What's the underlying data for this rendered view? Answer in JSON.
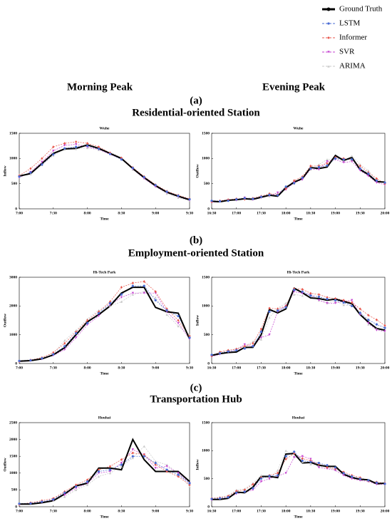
{
  "column_titles": [
    "Morning Peak",
    "Evening Peak"
  ],
  "panels": [
    {
      "label": "(a)",
      "title": "Residential-oriented Station"
    },
    {
      "label": "(b)",
      "title": "Employment-oriented Station"
    },
    {
      "label": "(c)",
      "title": "Transportation Hub"
    }
  ],
  "chart_data": [
    {
      "type": "line",
      "title": "Wuhe",
      "xlabel": "Time",
      "ylabel": "Inflow",
      "categories": [
        "7:00",
        null,
        null,
        "7:30",
        null,
        null,
        "8:00",
        null,
        null,
        "8:30",
        null,
        null,
        "9:00",
        null,
        null,
        "9:30"
      ],
      "ylim": [
        0,
        1500
      ],
      "yticks": [
        0,
        500,
        1000,
        1500
      ],
      "series": [
        {
          "name": "Ground Truth",
          "color": "#000000",
          "values": [
            650,
            700,
            900,
            1100,
            1190,
            1200,
            1270,
            1200,
            1100,
            1000,
            800,
            620,
            460,
            330,
            250,
            180
          ]
        },
        {
          "name": "LSTM",
          "color": "#4a6cd4",
          "values": [
            640,
            720,
            880,
            1080,
            1200,
            1230,
            1250,
            1190,
            1090,
            980,
            810,
            630,
            470,
            340,
            260,
            190
          ]
        },
        {
          "name": "Informer",
          "color": "#e8574d",
          "values": [
            660,
            800,
            1000,
            1230,
            1300,
            1330,
            1300,
            1230,
            1110,
            1010,
            820,
            640,
            480,
            350,
            270,
            200
          ]
        },
        {
          "name": "SVR",
          "color": "#c43fd0",
          "values": [
            620,
            730,
            930,
            1150,
            1260,
            1280,
            1230,
            1180,
            1080,
            990,
            790,
            600,
            440,
            320,
            240,
            170
          ]
        },
        {
          "name": "ARIMA",
          "color": "#c8c8c8",
          "values": [
            680,
            690,
            870,
            1060,
            1180,
            1190,
            1210,
            1170,
            1120,
            1020,
            780,
            610,
            450,
            300,
            220,
            160
          ]
        }
      ]
    },
    {
      "type": "line",
      "title": "Wuhe",
      "xlabel": "Time",
      "ylabel": "Outflow",
      "categories": [
        "16:30",
        null,
        null,
        "17:00",
        null,
        null,
        "17:30",
        null,
        null,
        "18:00",
        null,
        null,
        "18:30",
        null,
        null,
        "19:00",
        null,
        null,
        "19:30",
        null,
        null,
        "20:00"
      ],
      "ylim": [
        0,
        1500
      ],
      "yticks": [
        0,
        500,
        1000,
        1500
      ],
      "series": [
        {
          "name": "Ground Truth",
          "color": "#000000",
          "values": [
            150,
            140,
            170,
            180,
            200,
            190,
            230,
            270,
            250,
            420,
            530,
            600,
            820,
            800,
            830,
            1060,
            960,
            1020,
            780,
            680,
            540,
            530
          ]
        },
        {
          "name": "LSTM",
          "color": "#4a6cd4",
          "values": [
            160,
            150,
            160,
            190,
            210,
            200,
            240,
            280,
            270,
            440,
            510,
            620,
            800,
            830,
            860,
            1000,
            980,
            980,
            800,
            700,
            560,
            520
          ]
        },
        {
          "name": "Informer",
          "color": "#e8574d",
          "values": [
            140,
            160,
            180,
            200,
            190,
            210,
            250,
            300,
            280,
            400,
            560,
            640,
            850,
            850,
            900,
            1020,
            1000,
            970,
            850,
            720,
            600,
            500
          ]
        },
        {
          "name": "SVR",
          "color": "#c43fd0",
          "values": [
            130,
            140,
            170,
            170,
            220,
            180,
            220,
            260,
            320,
            380,
            520,
            580,
            790,
            780,
            940,
            980,
            920,
            940,
            760,
            650,
            520,
            480
          ]
        },
        {
          "name": "ARIMA",
          "color": "#c8c8c8",
          "values": [
            170,
            150,
            190,
            180,
            230,
            210,
            260,
            250,
            300,
            450,
            500,
            610,
            780,
            880,
            980,
            1000,
            950,
            1050,
            880,
            760,
            580,
            510
          ]
        }
      ]
    },
    {
      "type": "line",
      "title": "Hi-Tech Park",
      "xlabel": "Time",
      "ylabel": "Outflow",
      "categories": [
        "7:00",
        null,
        null,
        "7:30",
        null,
        null,
        "8:00",
        null,
        null,
        "8:30",
        null,
        null,
        "9:00",
        null,
        null,
        "9:30"
      ],
      "ylim": [
        0,
        3000
      ],
      "yticks": [
        0,
        1000,
        2000,
        3000
      ],
      "series": [
        {
          "name": "Ground Truth",
          "color": "#000000",
          "values": [
            80,
            100,
            160,
            300,
            550,
            1000,
            1450,
            1700,
            2000,
            2450,
            2650,
            2650,
            1950,
            1800,
            1750,
            850
          ]
        },
        {
          "name": "LSTM",
          "color": "#4a6cd4",
          "values": [
            90,
            110,
            180,
            320,
            600,
            1050,
            1400,
            1750,
            2100,
            2400,
            2700,
            2700,
            2200,
            1850,
            1650,
            900
          ]
        },
        {
          "name": "Informer",
          "color": "#e8574d",
          "values": [
            70,
            120,
            200,
            380,
            700,
            1100,
            1500,
            1800,
            2150,
            2650,
            2800,
            2850,
            2500,
            1900,
            1500,
            950
          ]
        },
        {
          "name": "SVR",
          "color": "#c43fd0",
          "values": [
            60,
            90,
            150,
            280,
            480,
            900,
            1350,
            1650,
            2050,
            2300,
            2450,
            2450,
            2450,
            1800,
            1400,
            850
          ]
        },
        {
          "name": "ARIMA",
          "color": "#c8c8c8",
          "values": [
            100,
            130,
            220,
            350,
            800,
            1150,
            1550,
            1850,
            2000,
            2150,
            2400,
            2500,
            2300,
            1700,
            1300,
            1000
          ]
        }
      ]
    },
    {
      "type": "line",
      "title": "Hi-Tech Park",
      "xlabel": "Time",
      "ylabel": "Inflow",
      "categories": [
        "16:30",
        null,
        null,
        "17:00",
        null,
        null,
        "17:30",
        null,
        null,
        "18:00",
        null,
        null,
        "18:30",
        null,
        null,
        "19:00",
        null,
        null,
        "19:30",
        null,
        null,
        "20:00"
      ],
      "ylim": [
        0,
        1500
      ],
      "yticks": [
        0,
        500,
        1000,
        1500
      ],
      "series": [
        {
          "name": "Ground Truth",
          "color": "#000000",
          "values": [
            140,
            170,
            190,
            200,
            280,
            280,
            500,
            940,
            880,
            950,
            1310,
            1230,
            1140,
            1130,
            1100,
            1120,
            1080,
            1040,
            850,
            720,
            610,
            580
          ]
        },
        {
          "name": "LSTM",
          "color": "#4a6cd4",
          "values": [
            150,
            180,
            210,
            230,
            260,
            300,
            550,
            900,
            920,
            980,
            1280,
            1250,
            1180,
            1160,
            1120,
            1100,
            1060,
            1000,
            880,
            760,
            680,
            620
          ]
        },
        {
          "name": "Informer",
          "color": "#e8574d",
          "values": [
            130,
            200,
            230,
            250,
            300,
            350,
            600,
            960,
            950,
            1000,
            1300,
            1290,
            1220,
            1200,
            1150,
            1130,
            1100,
            1060,
            950,
            840,
            760,
            660
          ]
        },
        {
          "name": "SVR",
          "color": "#c43fd0",
          "values": [
            120,
            160,
            200,
            240,
            330,
            300,
            450,
            500,
            900,
            1000,
            1250,
            1220,
            1200,
            1100,
            1050,
            1050,
            1080,
            1100,
            850,
            700,
            580,
            560
          ]
        },
        {
          "name": "ARIMA",
          "color": "#c8c8c8",
          "values": [
            160,
            190,
            220,
            260,
            300,
            380,
            420,
            800,
            960,
            1050,
            1200,
            1180,
            1180,
            1100,
            1050,
            1090,
            1020,
            1000,
            900,
            680,
            600,
            550
          ]
        }
      ]
    },
    {
      "type": "line",
      "title": "Houhai",
      "xlabel": "Time",
      "ylabel": "Outflow",
      "categories": [
        "7:00",
        null,
        null,
        "7:30",
        null,
        null,
        "8:00",
        null,
        null,
        "8:30",
        null,
        null,
        "9:00",
        null,
        null,
        "9:30"
      ],
      "ylim": [
        0,
        2500
      ],
      "yticks": [
        0,
        500,
        1000,
        1500,
        2000,
        2500
      ],
      "series": [
        {
          "name": "Ground Truth",
          "color": "#000000",
          "values": [
            80,
            80,
            120,
            180,
            380,
            620,
            700,
            1150,
            1150,
            1100,
            2000,
            1400,
            1050,
            1050,
            1050,
            750
          ]
        },
        {
          "name": "LSTM",
          "color": "#4a6cd4",
          "values": [
            90,
            100,
            150,
            220,
            420,
            600,
            750,
            1050,
            1100,
            1250,
            1500,
            1500,
            1300,
            1100,
            950,
            700
          ]
        },
        {
          "name": "Informer",
          "color": "#e8574d",
          "values": [
            70,
            120,
            180,
            250,
            450,
            650,
            800,
            1100,
            1200,
            1400,
            1600,
            1550,
            1250,
            1050,
            900,
            650
          ]
        },
        {
          "name": "SVR",
          "color": "#c43fd0",
          "values": [
            60,
            90,
            130,
            200,
            350,
            550,
            700,
            1000,
            1050,
            1300,
            1700,
            1550,
            1150,
            1200,
            1000,
            700
          ]
        },
        {
          "name": "ARIMA",
          "color": "#c8c8c8",
          "values": [
            100,
            110,
            160,
            180,
            300,
            500,
            650,
            900,
            1000,
            1200,
            1450,
            1800,
            1350,
            1250,
            1000,
            600
          ]
        }
      ]
    },
    {
      "type": "line",
      "title": "Houhai",
      "xlabel": "Time",
      "ylabel": "Inflow",
      "categories": [
        "16:30",
        null,
        null,
        "17:00",
        null,
        null,
        "17:30",
        null,
        null,
        "18:00",
        null,
        null,
        "18:30",
        null,
        null,
        "19:00",
        null,
        null,
        "19:30",
        null,
        null,
        "20:00"
      ],
      "ylim": [
        0,
        1500
      ],
      "yticks": [
        0,
        500,
        1000,
        1500
      ],
      "series": [
        {
          "name": "Ground Truth",
          "color": "#000000",
          "values": [
            130,
            130,
            150,
            260,
            250,
            350,
            540,
            540,
            520,
            940,
            950,
            780,
            790,
            740,
            720,
            720,
            580,
            520,
            490,
            480,
            410,
            420
          ]
        },
        {
          "name": "LSTM",
          "color": "#4a6cd4",
          "values": [
            140,
            150,
            170,
            250,
            270,
            330,
            500,
            550,
            560,
            900,
            980,
            820,
            800,
            780,
            740,
            700,
            600,
            540,
            500,
            470,
            430,
            410
          ]
        },
        {
          "name": "Informer",
          "color": "#e8574d",
          "values": [
            150,
            160,
            190,
            280,
            300,
            400,
            520,
            560,
            600,
            850,
            950,
            860,
            820,
            760,
            700,
            680,
            620,
            560,
            520,
            460,
            440,
            420
          ]
        },
        {
          "name": "SVR",
          "color": "#c43fd0",
          "values": [
            120,
            140,
            160,
            230,
            260,
            300,
            450,
            500,
            550,
            600,
            880,
            900,
            850,
            700,
            680,
            650,
            560,
            500,
            470,
            450,
            400,
            400
          ]
        },
        {
          "name": "ARIMA",
          "color": "#c8c8c8",
          "values": [
            160,
            170,
            200,
            300,
            320,
            420,
            560,
            500,
            650,
            1000,
            900,
            800,
            760,
            720,
            700,
            660,
            600,
            520,
            480,
            470,
            430,
            400
          ]
        }
      ]
    }
  ]
}
